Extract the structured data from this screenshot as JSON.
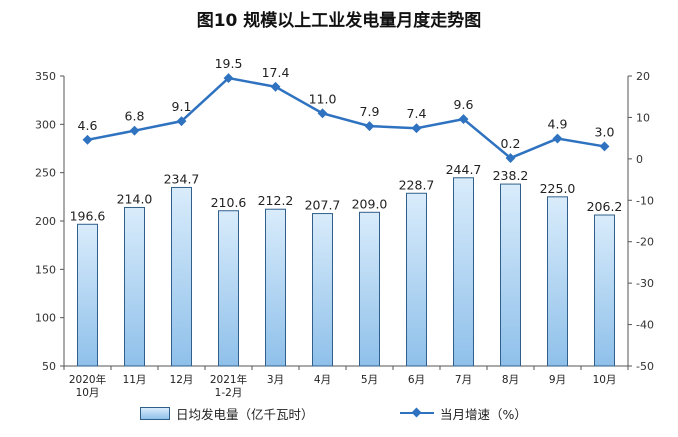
{
  "chart_data": {
    "type": "bar+line",
    "title": "图10  规模以上工业发电量月度走势图",
    "categories": [
      {
        "line1": "2020年",
        "line2": "10月"
      },
      {
        "line1": "11月",
        "line2": ""
      },
      {
        "line1": "12月",
        "line2": ""
      },
      {
        "line1": "2021年",
        "line2": "1-2月"
      },
      {
        "line1": "3月",
        "line2": ""
      },
      {
        "line1": "4月",
        "line2": ""
      },
      {
        "line1": "5月",
        "line2": ""
      },
      {
        "line1": "6月",
        "line2": ""
      },
      {
        "line1": "7月",
        "line2": ""
      },
      {
        "line1": "8月",
        "line2": ""
      },
      {
        "line1": "9月",
        "line2": ""
      },
      {
        "line1": "10月",
        "line2": ""
      }
    ],
    "series": [
      {
        "name": "日均发电量（亿千瓦时）",
        "type": "bar",
        "axis": "left",
        "values": [
          196.6,
          214.0,
          234.7,
          210.6,
          212.2,
          207.7,
          209.0,
          228.7,
          244.7,
          238.2,
          225.0,
          206.2
        ],
        "labels": [
          "196.6",
          "214.0",
          "234.7",
          "210.6",
          "212.2",
          "207.7",
          "209.0",
          "228.7",
          "244.7",
          "238.2",
          "225.0",
          "206.2"
        ]
      },
      {
        "name": "当月增速（%）",
        "type": "line",
        "axis": "right",
        "values": [
          4.6,
          6.8,
          9.1,
          19.5,
          17.4,
          11.0,
          7.9,
          7.4,
          9.6,
          0.2,
          4.9,
          3.0
        ],
        "labels": [
          "4.6",
          "6.8",
          "9.1",
          "19.5",
          "17.4",
          "11.0",
          "7.9",
          "7.4",
          "9.6",
          "0.2",
          "4.9",
          "3.0"
        ]
      }
    ],
    "y_left": {
      "min": 50,
      "max": 350,
      "ticks": [
        "50",
        "100",
        "150",
        "200",
        "250",
        "300",
        "350"
      ]
    },
    "y_right": {
      "min": -50,
      "max": 20,
      "ticks": [
        "-50",
        "-40",
        "-30",
        "-20",
        "-10",
        "0",
        "10",
        "20"
      ]
    },
    "grid": false,
    "legend_position": "bottom",
    "colors": {
      "bar_top": "#d9ecfb",
      "bar_bottom": "#8fc0ea",
      "bar_border": "#2f5f8a",
      "line": "#2e72c0",
      "axis": "#555555"
    }
  }
}
